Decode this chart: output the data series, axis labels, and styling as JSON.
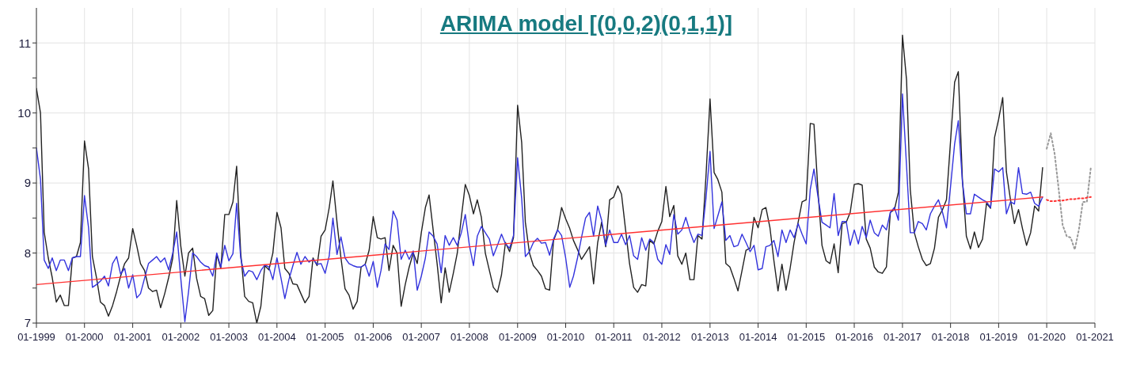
{
  "chart_data": {
    "type": "line",
    "title": "ARIMA model [(0,0,2)(0,1,1)]",
    "xlim": [
      "1999-01",
      "2021-01"
    ],
    "xticks": [
      {
        "value": "1999-01",
        "label": "01-1999"
      },
      {
        "value": "2000-01",
        "label": "01-2000"
      },
      {
        "value": "2001-01",
        "label": "01-2001"
      },
      {
        "value": "2002-01",
        "label": "01-2002"
      },
      {
        "value": "2003-01",
        "label": "01-2003"
      },
      {
        "value": "2004-01",
        "label": "01-2004"
      },
      {
        "value": "2005-01",
        "label": "01-2005"
      },
      {
        "value": "2006-01",
        "label": "01-2006"
      },
      {
        "value": "2007-01",
        "label": "01-2007"
      },
      {
        "value": "2008-01",
        "label": "01-2008"
      },
      {
        "value": "2009-01",
        "label": "01-2009"
      },
      {
        "value": "2010-01",
        "label": "01-2010"
      },
      {
        "value": "2011-01",
        "label": "01-2011"
      },
      {
        "value": "2012-01",
        "label": "01-2012"
      },
      {
        "value": "2013-01",
        "label": "01-2013"
      },
      {
        "value": "2014-01",
        "label": "01-2014"
      },
      {
        "value": "2015-01",
        "label": "01-2015"
      },
      {
        "value": "2016-01",
        "label": "01-2016"
      },
      {
        "value": "2017-01",
        "label": "01-2017"
      },
      {
        "value": "2018-01",
        "label": "01-2018"
      },
      {
        "value": "2019-01",
        "label": "01-2019"
      },
      {
        "value": "2020-01",
        "label": "01-2020"
      },
      {
        "value": "2021-01",
        "label": "01-2021"
      }
    ],
    "ylim": [
      7,
      11.5
    ],
    "yticks": [
      7,
      {
        "value": 7.5,
        "label": null
      },
      8,
      {
        "value": 8.5,
        "label": null
      },
      9,
      {
        "value": 9.5,
        "label": null
      },
      10,
      {
        "value": 10.5,
        "label": null
      },
      11
    ],
    "grid": true,
    "x": [
      "1999-01",
      "1999-02",
      "1999-03",
      "1999-04",
      "1999-05",
      "1999-06",
      "1999-07",
      "1999-08",
      "1999-09",
      "1999-10",
      "1999-11",
      "1999-12",
      "2000-01",
      "2000-02",
      "2000-03",
      "2000-04",
      "2000-05",
      "2000-06",
      "2000-07",
      "2000-08",
      "2000-09",
      "2000-10",
      "2000-11",
      "2000-12",
      "2001-01",
      "2001-02",
      "2001-03",
      "2001-04",
      "2001-05",
      "2001-06",
      "2001-07",
      "2001-08",
      "2001-09",
      "2001-10",
      "2001-11",
      "2001-12",
      "2002-01",
      "2002-02",
      "2002-03",
      "2002-04",
      "2002-05",
      "2002-06",
      "2002-07",
      "2002-08",
      "2002-09",
      "2002-10",
      "2002-11",
      "2002-12",
      "2003-01",
      "2003-02",
      "2003-03",
      "2003-04",
      "2003-05",
      "2003-06",
      "2003-07",
      "2003-08",
      "2003-09",
      "2003-10",
      "2003-11",
      "2003-12",
      "2004-01",
      "2004-02",
      "2004-03",
      "2004-04",
      "2004-05",
      "2004-06",
      "2004-07",
      "2004-08",
      "2004-09",
      "2004-10",
      "2004-11",
      "2004-12",
      "2005-01",
      "2005-02",
      "2005-03",
      "2005-04",
      "2005-05",
      "2005-06",
      "2005-07",
      "2005-08",
      "2005-09",
      "2005-10",
      "2005-11",
      "2005-12",
      "2006-01",
      "2006-02",
      "2006-03",
      "2006-04",
      "2006-05",
      "2006-06",
      "2006-07",
      "2006-08",
      "2006-09",
      "2006-10",
      "2006-11",
      "2006-12",
      "2007-01",
      "2007-02",
      "2007-03",
      "2007-04",
      "2007-05",
      "2007-06",
      "2007-07",
      "2007-08",
      "2007-09",
      "2007-10",
      "2007-11",
      "2007-12",
      "2008-01",
      "2008-02",
      "2008-03",
      "2008-04",
      "2008-05",
      "2008-06",
      "2008-07",
      "2008-08",
      "2008-09",
      "2008-10",
      "2008-11",
      "2008-12",
      "2009-01",
      "2009-02",
      "2009-03",
      "2009-04",
      "2009-05",
      "2009-06",
      "2009-07",
      "2009-08",
      "2009-09",
      "2009-10",
      "2009-11",
      "2009-12",
      "2010-01",
      "2010-02",
      "2010-03",
      "2010-04",
      "2010-05",
      "2010-06",
      "2010-07",
      "2010-08",
      "2010-09",
      "2010-10",
      "2010-11",
      "2010-12",
      "2011-01",
      "2011-02",
      "2011-03",
      "2011-04",
      "2011-05",
      "2011-06",
      "2011-07",
      "2011-08",
      "2011-09",
      "2011-10",
      "2011-11",
      "2011-12",
      "2012-01",
      "2012-02",
      "2012-03",
      "2012-04",
      "2012-05",
      "2012-06",
      "2012-07",
      "2012-08",
      "2012-09",
      "2012-10",
      "2012-11",
      "2012-12",
      "2013-01",
      "2013-02",
      "2013-03",
      "2013-04",
      "2013-05",
      "2013-06",
      "2013-07",
      "2013-08",
      "2013-09",
      "2013-10",
      "2013-11",
      "2013-12",
      "2014-01",
      "2014-02",
      "2014-03",
      "2014-04",
      "2014-05",
      "2014-06",
      "2014-07",
      "2014-08",
      "2014-09",
      "2014-10",
      "2014-11",
      "2014-12",
      "2015-01",
      "2015-02",
      "2015-03",
      "2015-04",
      "2015-05",
      "2015-06",
      "2015-07",
      "2015-08",
      "2015-09",
      "2015-10",
      "2015-11",
      "2015-12",
      "2016-01",
      "2016-02",
      "2016-03",
      "2016-04",
      "2016-05",
      "2016-06",
      "2016-07",
      "2016-08",
      "2016-09",
      "2016-10",
      "2016-11",
      "2016-12",
      "2017-01",
      "2017-02",
      "2017-03",
      "2017-04",
      "2017-05",
      "2017-06",
      "2017-07",
      "2017-08",
      "2017-09",
      "2017-10",
      "2017-11",
      "2017-12",
      "2018-01",
      "2018-02",
      "2018-03",
      "2018-04",
      "2018-05",
      "2018-06",
      "2018-07",
      "2018-08",
      "2018-09",
      "2018-10",
      "2018-11",
      "2018-12",
      "2019-01",
      "2019-02",
      "2019-03",
      "2019-04",
      "2019-05",
      "2019-06",
      "2019-07",
      "2019-08",
      "2019-09",
      "2019-10",
      "2019-11",
      "2019-12"
    ],
    "series": [
      {
        "color": "#222222",
        "values": [
          10.35,
          10.0,
          8.3,
          7.93,
          7.65,
          7.3,
          7.4,
          7.25,
          7.25,
          7.93,
          7.95,
          8.15,
          9.6,
          9.2,
          7.95,
          7.65,
          7.3,
          7.25,
          7.1,
          7.25,
          7.45,
          7.67,
          7.85,
          7.93,
          8.35,
          8.1,
          7.85,
          7.75,
          7.5,
          7.45,
          7.47,
          7.22,
          7.42,
          7.65,
          7.93,
          8.75,
          8.1,
          7.67,
          8.0,
          8.07,
          7.64,
          7.38,
          7.35,
          7.11,
          7.18,
          7.98,
          7.78,
          8.55,
          8.55,
          8.73,
          9.24,
          8.0,
          7.38,
          7.31,
          7.29,
          7.0,
          7.24,
          7.82,
          7.76,
          8.0,
          8.58,
          8.36,
          7.78,
          7.71,
          7.56,
          7.55,
          7.42,
          7.29,
          7.38,
          7.93,
          7.82,
          8.24,
          8.33,
          8.65,
          9.03,
          8.44,
          7.93,
          7.49,
          7.4,
          7.2,
          7.31,
          7.8,
          7.84,
          8.04,
          8.52,
          8.22,
          8.2,
          8.22,
          7.75,
          8.11,
          8.0,
          7.24,
          7.55,
          7.8,
          8.0,
          7.85,
          8.29,
          8.65,
          8.83,
          8.33,
          7.85,
          7.29,
          7.79,
          7.44,
          7.71,
          8.0,
          8.51,
          8.98,
          8.82,
          8.56,
          8.76,
          8.51,
          8.0,
          7.75,
          7.51,
          7.44,
          7.69,
          8.15,
          8.02,
          8.22,
          10.11,
          9.58,
          8.44,
          8.0,
          7.82,
          7.75,
          7.67,
          7.49,
          7.47,
          8.18,
          8.33,
          8.65,
          8.49,
          8.35,
          8.18,
          8.05,
          7.91,
          8.0,
          8.09,
          7.56,
          8.15,
          8.44,
          8.09,
          8.76,
          8.8,
          8.96,
          8.84,
          8.33,
          7.85,
          7.51,
          7.44,
          7.55,
          7.53,
          8.18,
          8.13,
          8.31,
          8.45,
          8.95,
          8.52,
          8.68,
          7.96,
          7.84,
          8.0,
          7.62,
          7.62,
          8.25,
          8.2,
          9.09,
          10.2,
          9.15,
          9.05,
          8.87,
          7.85,
          7.8,
          7.64,
          7.46,
          7.75,
          8.04,
          8.07,
          8.51,
          8.36,
          8.62,
          8.65,
          8.36,
          7.89,
          7.46,
          7.84,
          7.47,
          7.78,
          8.15,
          8.44,
          8.73,
          8.76,
          9.85,
          9.84,
          8.87,
          8.11,
          7.89,
          7.85,
          8.13,
          7.72,
          8.42,
          8.44,
          8.58,
          8.98,
          8.99,
          8.97,
          8.2,
          8.07,
          7.8,
          7.73,
          7.71,
          7.8,
          8.58,
          8.62,
          8.87,
          11.11,
          10.47,
          8.91,
          8.29,
          8.09,
          7.91,
          7.82,
          7.85,
          8.07,
          8.51,
          8.62,
          8.76,
          9.6,
          10.44,
          10.59,
          9.05,
          8.24,
          8.06,
          8.3,
          8.08,
          8.2,
          8.71,
          8.64,
          9.65,
          9.91,
          10.22,
          9.16,
          8.76,
          8.42,
          8.62,
          8.35,
          8.11,
          8.29,
          8.67,
          8.6,
          9.22
        ]
      },
      {
        "color": "#3333dd",
        "values": [
          9.5,
          9.05,
          7.9,
          7.78,
          7.93,
          7.75,
          7.9,
          7.9,
          7.75,
          7.93,
          7.95,
          7.95,
          8.82,
          8.36,
          7.51,
          7.55,
          7.6,
          7.67,
          7.53,
          7.85,
          7.95,
          7.7,
          7.78,
          7.5,
          7.69,
          7.36,
          7.42,
          7.64,
          7.85,
          7.9,
          7.95,
          7.87,
          7.93,
          7.76,
          8.0,
          8.3,
          7.64,
          7.02,
          7.45,
          8.0,
          7.95,
          7.87,
          7.82,
          7.8,
          7.67,
          8.0,
          7.8,
          8.11,
          7.89,
          7.99,
          8.71,
          7.93,
          7.67,
          7.75,
          7.73,
          7.62,
          7.75,
          7.83,
          7.8,
          7.62,
          7.93,
          7.64,
          7.35,
          7.62,
          7.82,
          8.01,
          7.84,
          7.95,
          7.87,
          7.91,
          7.84,
          7.85,
          7.71,
          7.96,
          8.5,
          7.98,
          8.23,
          7.93,
          7.85,
          7.82,
          7.8,
          7.8,
          7.84,
          7.67,
          7.88,
          7.51,
          7.75,
          8.13,
          8.05,
          8.6,
          8.47,
          7.91,
          8.04,
          7.91,
          8.03,
          7.47,
          7.67,
          7.93,
          8.3,
          8.24,
          8.13,
          7.72,
          8.25,
          8.11,
          8.22,
          8.11,
          8.29,
          8.55,
          8.11,
          7.82,
          8.24,
          8.38,
          8.29,
          8.2,
          7.96,
          8.11,
          8.27,
          8.13,
          8.07,
          8.25,
          9.36,
          8.78,
          7.95,
          8.02,
          8.15,
          8.21,
          8.14,
          8.15,
          7.97,
          8.2,
          8.33,
          8.25,
          7.93,
          7.51,
          7.67,
          7.93,
          8.22,
          8.5,
          8.58,
          8.24,
          8.67,
          8.47,
          8.11,
          8.33,
          8.15,
          8.15,
          8.27,
          8.12,
          8.25,
          7.96,
          7.91,
          8.22,
          8.04,
          8.2,
          8.15,
          7.91,
          7.84,
          8.12,
          7.98,
          8.55,
          8.27,
          8.33,
          8.51,
          8.31,
          8.15,
          8.27,
          8.25,
          8.78,
          9.45,
          8.35,
          8.53,
          8.73,
          8.18,
          8.25,
          8.09,
          8.11,
          8.27,
          8.15,
          8.02,
          8.11,
          7.76,
          7.78,
          8.09,
          8.11,
          8.18,
          7.95,
          8.33,
          8.15,
          8.33,
          8.22,
          8.42,
          8.27,
          8.13,
          8.91,
          9.2,
          8.8,
          8.44,
          8.4,
          8.36,
          8.85,
          8.25,
          8.45,
          8.45,
          8.11,
          8.33,
          8.13,
          8.38,
          8.22,
          8.47,
          8.29,
          8.24,
          8.4,
          8.33,
          8.58,
          8.65,
          8.47,
          10.27,
          9.24,
          8.29,
          8.29,
          8.45,
          8.42,
          8.33,
          8.56,
          8.67,
          8.76,
          8.58,
          8.36,
          8.95,
          9.56,
          9.89,
          9.02,
          8.56,
          8.56,
          8.84,
          8.8,
          8.76,
          8.73,
          8.65,
          9.2,
          9.16,
          9.22,
          8.56,
          8.73,
          8.7,
          9.22,
          8.85,
          8.84,
          8.87,
          8.71,
          8.67,
          8.8
        ]
      },
      {
        "color": "#ff3030",
        "x": [
          "1999-01",
          "2019-12"
        ],
        "values": [
          7.55,
          8.8
        ]
      },
      {
        "color": "#999999",
        "line_style": "dotted",
        "x": [
          "2020-01",
          "2020-02",
          "2020-03",
          "2020-04",
          "2020-05",
          "2020-06",
          "2020-07",
          "2020-08",
          "2020-09",
          "2020-10",
          "2020-11",
          "2020-12"
        ],
        "values": [
          9.49,
          9.71,
          9.42,
          8.91,
          8.4,
          8.24,
          8.22,
          8.05,
          8.33,
          8.73,
          8.73,
          9.22
        ]
      },
      {
        "color": "#ff3030",
        "line_style": "dotted",
        "x": [
          "2020-01",
          "2020-02",
          "2020-03",
          "2020-04",
          "2020-05",
          "2020-06",
          "2020-07",
          "2020-08",
          "2020-09",
          "2020-10",
          "2020-11",
          "2020-12"
        ],
        "values": [
          8.76,
          8.74,
          8.74,
          8.75,
          8.75,
          8.76,
          8.77,
          8.77,
          8.78,
          8.78,
          8.79,
          8.8
        ]
      }
    ]
  }
}
